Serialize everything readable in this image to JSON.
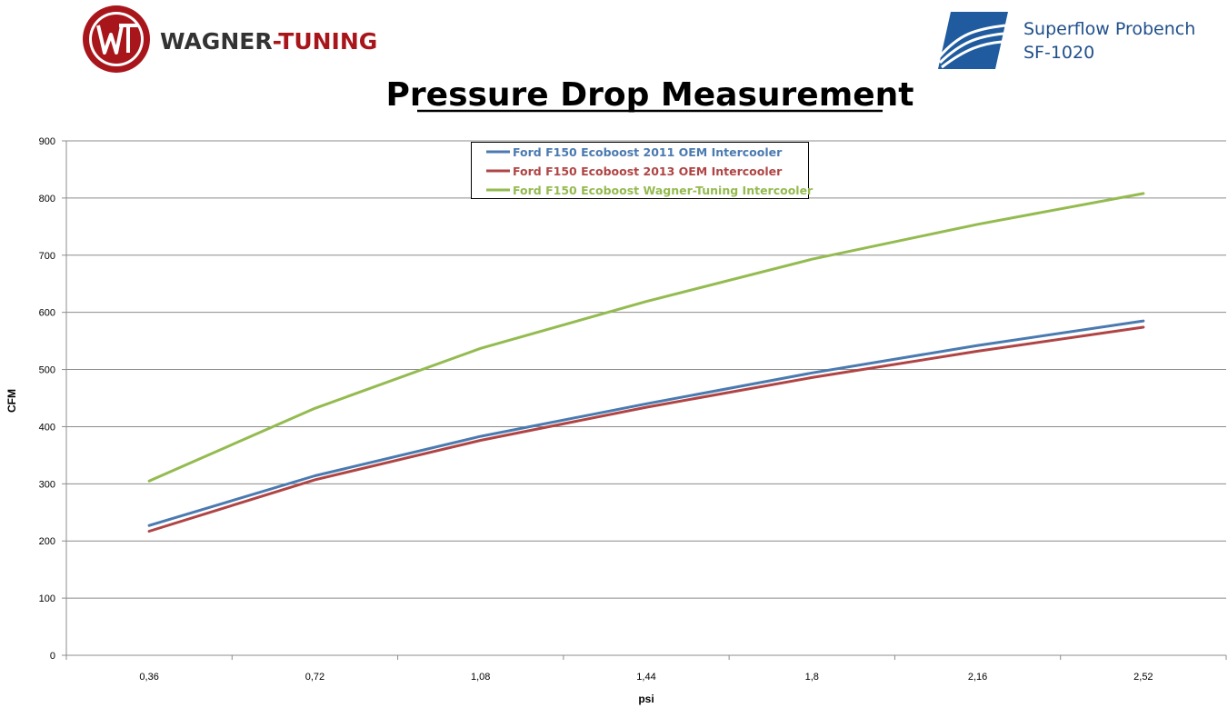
{
  "header": {
    "logo_brand_main": "WAGNER",
    "logo_brand_accent": "-TUNING",
    "bench_line1": "Superflow Probench",
    "bench_line2": "SF-1020"
  },
  "colors": {
    "brand_red": "#a8161c",
    "superflow_blue": "#1f5b9e",
    "series_2011": "#4a7ab0",
    "series_2013": "#b04444",
    "series_wagner": "#94bb50",
    "grid": "#8c8c8c"
  },
  "chart_data": {
    "type": "line",
    "title": "Pressure Drop Measurement",
    "xlabel": "psi",
    "ylabel": "CFM",
    "categories": [
      "0,36",
      "0,72",
      "1,08",
      "1,44",
      "1,8",
      "2,16",
      "2,52"
    ],
    "ylim": [
      0,
      900
    ],
    "yticks": [
      0,
      100,
      200,
      300,
      400,
      500,
      600,
      700,
      800,
      900
    ],
    "grid": true,
    "legend_position": "top-center",
    "series": [
      {
        "name": "Ford F150 Ecoboost 2011 OEM Intercooler",
        "color": "#4a7ab0",
        "values": [
          227,
          314,
          383,
          440,
          494,
          542,
          585
        ]
      },
      {
        "name": "Ford F150 Ecoboost 2013 OEM Intercooler",
        "color": "#b04444",
        "values": [
          217,
          307,
          376,
          434,
          486,
          532,
          574
        ]
      },
      {
        "name": "Ford F150 Ecoboost Wagner-Tuning Intercooler",
        "color": "#94bb50",
        "values": [
          305,
          432,
          537,
          619,
          693,
          754,
          808
        ]
      }
    ]
  }
}
